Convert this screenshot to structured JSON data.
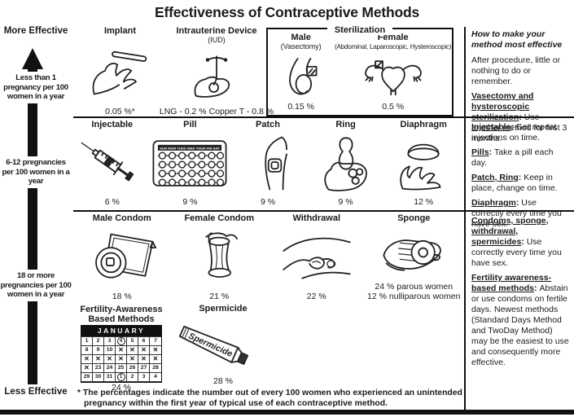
{
  "title": "Effectiveness of Contraceptive Methods",
  "colors": {
    "ink": "#1a1a1a",
    "paper": "#ffffff"
  },
  "axis": {
    "more_label": "More Effective",
    "less_label": "Less Effective",
    "tier1": "Less than 1 pregnancy per 100 women in a year",
    "tier2": "6-12 pregnancies per 100 women in a year",
    "tier3": "18 or more pregnancies per 100 women in a year"
  },
  "methods": {
    "implant": {
      "label": "Implant",
      "pct": "0.05 %*"
    },
    "iud": {
      "label": "Intrauterine Device",
      "sub": "(IUD)",
      "pct": "LNG - 0.2 %  Copper T - 0.8 %"
    },
    "sterilization": {
      "label": "Sterilization",
      "male": {
        "label": "Male",
        "sub": "(Vasectomy)",
        "pct": "0.15 %"
      },
      "female": {
        "label": "Female",
        "sub": "(Abdominal, Laparoscopic, Hysteroscopic)",
        "pct": "0.5 %"
      }
    },
    "injectable": {
      "label": "Injectable",
      "pct": "6 %"
    },
    "pill": {
      "label": "Pill",
      "days": "SUN MON TUES WED THUR FRI SAT",
      "pct": "9 %"
    },
    "patch": {
      "label": "Patch",
      "pct": "9 %"
    },
    "ring": {
      "label": "Ring",
      "pct": "9 %"
    },
    "diaphragm": {
      "label": "Diaphragm",
      "pct": "12 %"
    },
    "male_condom": {
      "label": "Male Condom",
      "pct": "18 %"
    },
    "female_condom": {
      "label": "Female Condom",
      "pct": "21 %"
    },
    "withdrawal": {
      "label": "Withdrawal",
      "pct": "22 %"
    },
    "sponge": {
      "label": "Sponge",
      "pct_line1": "24 % parous women",
      "pct_line2": "12 % nulliparous women"
    },
    "fab": {
      "label_line1": "Fertility-Awareness",
      "label_line2": "Based Methods",
      "pct": "24 %",
      "calendar": {
        "month": "JANUARY",
        "cells": [
          "1",
          "2",
          "3",
          "(4)",
          "5",
          "6",
          "7",
          "8",
          "9",
          "10",
          "x",
          "x",
          "x",
          "x",
          "x",
          "x",
          "x",
          "x",
          "x",
          "x",
          "x",
          "x",
          "23",
          "24",
          "25",
          "26",
          "27",
          "28",
          "29",
          "30",
          "31",
          "(1)",
          "2",
          "3",
          "4"
        ]
      }
    },
    "spermicide": {
      "label": "Spermicide",
      "tube_text": "Spermicide",
      "pct": "28 %"
    }
  },
  "sidebar": {
    "heading": "How to make your method most effective",
    "s1p1": "After procedure, little or nothing to do or remember.",
    "s1p2_lead": "Vasectomy and hysteroscopic sterilization",
    "s1p2_text": "Use another method for first 3 months.",
    "s2p1_lead": "Injectable",
    "s2p1_text": "Get repeat injections on time.",
    "s2p2_lead": "Pills",
    "s2p2_text": "Take a pill each day.",
    "s2p3_lead": "Patch, Ring",
    "s2p3_text": "Keep in place, change on time.",
    "s2p4_lead": "Diaphragm",
    "s2p4_text": "Use correctly every time you have sex.",
    "s3p1_lead": "Condoms, sponge, withdrawal, spermicides",
    "s3p1_text": "Use correctly every time you have sex.",
    "s3p2_lead": "Fertility awareness-based methods",
    "s3p2_text": "Abstain or use condoms on fertile days. Newest methods (Standard Days Method and TwoDay Method) may be the easiest to use and consequently more effective."
  },
  "footnote": "* The percentages indicate the number out of every 100 women who experienced an unintended pregnancy within the first year of typical use of each contraceptive method."
}
